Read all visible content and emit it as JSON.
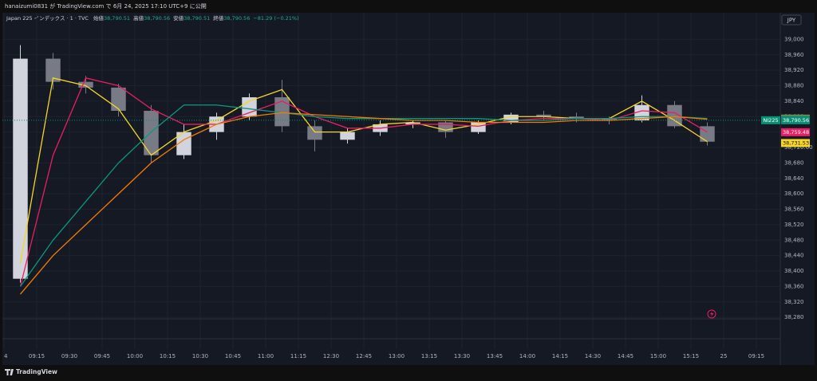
{
  "header": {
    "publish_line": "hanaizumi0831 が TradingView.com で 6月 24, 2025 17:10 UTC+9 に公開",
    "currency": "JPY",
    "footer_brand": "TradingView"
  },
  "chart_data": {
    "type": "candlestick",
    "symbol": "Japan 225 インデックス · 1 · TVC",
    "ohlc_legend": [
      {
        "label": "始値",
        "value": "38,790.51"
      },
      {
        "label": "高値",
        "value": "38,790.56"
      },
      {
        "label": "安値",
        "value": "38,790.51"
      },
      {
        "label": "終値",
        "value": "38,790.56"
      }
    ],
    "change": "−81.29 (−0.21%)",
    "categories": [
      "4",
      "09:15",
      "09:30",
      "09:45",
      "10:00",
      "10:15",
      "10:30",
      "10:45",
      "11:00",
      "11:15",
      "12:30",
      "12:45",
      "13:00",
      "13:15",
      "13:30",
      "13:45",
      "14:00",
      "14:15",
      "14:30",
      "14:45",
      "15:00",
      "15:15",
      "25",
      "09:15",
      "09:"
    ],
    "open": [
      38380,
      38950,
      38890,
      38875,
      38815,
      38700,
      38760,
      38800,
      38850,
      38775,
      38740,
      38760,
      38780,
      38785,
      38760,
      38785,
      38805,
      38800,
      38795,
      38790,
      38830,
      38775,
      null,
      null,
      null
    ],
    "high": [
      38985,
      38965,
      38905,
      38885,
      38830,
      38780,
      38810,
      38860,
      38895,
      38790,
      38770,
      38790,
      38790,
      38790,
      38790,
      38810,
      38815,
      38810,
      38800,
      38855,
      38840,
      38785,
      null,
      null,
      null
    ],
    "low": [
      38370,
      38870,
      38860,
      38800,
      38680,
      38690,
      38740,
      38790,
      38760,
      38710,
      38730,
      38750,
      38770,
      38745,
      38755,
      38780,
      38790,
      38785,
      38780,
      38785,
      38770,
      38725,
      null,
      null,
      null
    ],
    "close": [
      38950,
      38890,
      38875,
      38815,
      38700,
      38760,
      38800,
      38850,
      38775,
      38740,
      38760,
      38780,
      38785,
      38760,
      38785,
      38805,
      38800,
      38795,
      38790,
      38830,
      38775,
      38735,
      null,
      null,
      null
    ],
    "candle_colors": {
      "up": "#d1d4dc",
      "down": "#787b86"
    },
    "series": [
      {
        "color": "#f5d628",
        "values": [
          38420,
          38900,
          38880,
          38820,
          38700,
          38760,
          38790,
          38840,
          38870,
          38760,
          38760,
          38780,
          38785,
          38765,
          38780,
          38800,
          38800,
          38795,
          38795,
          38840,
          38790,
          38735,
          null,
          null,
          null
        ]
      },
      {
        "color": "#e91e63",
        "values": [
          38360,
          38700,
          38900,
          38880,
          38820,
          38780,
          38780,
          38810,
          38840,
          38800,
          38770,
          38770,
          38780,
          38780,
          38775,
          38790,
          38795,
          38795,
          38790,
          38815,
          38810,
          38760,
          null,
          null,
          null
        ]
      },
      {
        "color": "#089981",
        "values": [
          38360,
          38480,
          38580,
          38680,
          38760,
          38830,
          38830,
          38820,
          38810,
          38800,
          38795,
          38795,
          38795,
          38795,
          38795,
          38790,
          38790,
          38795,
          38795,
          38800,
          38800,
          38795,
          null,
          null,
          null
        ]
      },
      {
        "color": "#f57c00",
        "values": [
          38340,
          38440,
          38520,
          38600,
          38680,
          38740,
          38780,
          38800,
          38810,
          38805,
          38800,
          38795,
          38790,
          38790,
          38785,
          38785,
          38785,
          38790,
          38790,
          38795,
          38800,
          38793,
          null,
          null,
          null
        ]
      }
    ],
    "price_labels": [
      {
        "value": 38794.7,
        "label": "38,794.70",
        "color": "#f57c00"
      },
      {
        "value": 38793.11,
        "label": "38,793.11",
        "color": "#089981"
      },
      {
        "value": 38790.56,
        "label": "38,790.56",
        "tag": "NI225",
        "color": "#0a8f75"
      },
      {
        "value": 38759.48,
        "label": "38,759.48",
        "color": "#e91e63"
      },
      {
        "value": 38731.53,
        "label": "38,731.53",
        "color": "#f5d628"
      }
    ],
    "ylim": [
      38270,
      39040
    ],
    "yticks": [
      {
        "value": 38280,
        "label": "38,280"
      },
      {
        "value": 38320,
        "label": "38,320"
      },
      {
        "value": 38360,
        "label": "38,360"
      },
      {
        "value": 38400,
        "label": "38,400"
      },
      {
        "value": 38440,
        "label": "38,440"
      },
      {
        "value": 38480,
        "label": "38,480"
      },
      {
        "value": 38520,
        "label": "38,520"
      },
      {
        "value": 38560,
        "label": "38,560"
      },
      {
        "value": 38600,
        "label": "38,600"
      },
      {
        "value": 38640,
        "label": "38,640"
      },
      {
        "value": 38680,
        "label": "38,680"
      },
      {
        "value": 38720,
        "label": "38,720.00"
      },
      {
        "value": 38760,
        "label": "38,760"
      },
      {
        "value": 38800,
        "label": "38,800"
      },
      {
        "value": 38840,
        "label": "38,840"
      },
      {
        "value": 38880,
        "label": "38,880"
      },
      {
        "value": 38920,
        "label": "38,920"
      },
      {
        "value": 38960,
        "label": "38,960"
      },
      {
        "value": 39000,
        "label": "39,000"
      }
    ],
    "grid": true
  }
}
